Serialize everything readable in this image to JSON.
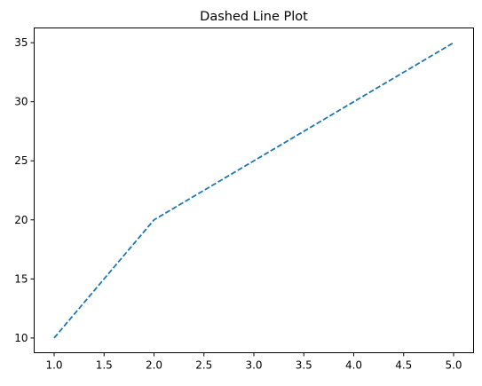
{
  "chart_data": {
    "type": "line",
    "title": "Dashed Line Plot",
    "xlabel": "",
    "ylabel": "",
    "x": [
      1,
      2,
      3,
      4,
      5
    ],
    "series": [
      {
        "values": [
          10,
          20,
          25,
          30,
          35
        ],
        "color": "#1f77b4",
        "line_style": "dashed"
      }
    ],
    "xlim": [
      0.8,
      5.2
    ],
    "ylim": [
      8.75,
      36.25
    ],
    "xticks": [
      "1.0",
      "1.5",
      "2.0",
      "2.5",
      "3.0",
      "3.5",
      "4.0",
      "4.5",
      "5.0"
    ],
    "yticks": [
      "10",
      "15",
      "20",
      "25",
      "30",
      "35"
    ],
    "grid": false,
    "legend": "none"
  }
}
